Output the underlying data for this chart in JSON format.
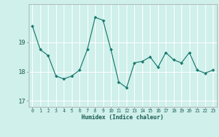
{
  "x": [
    0,
    1,
    2,
    3,
    4,
    5,
    6,
    7,
    8,
    9,
    10,
    11,
    12,
    13,
    14,
    15,
    16,
    17,
    18,
    19,
    20,
    21,
    22,
    23
  ],
  "y": [
    19.55,
    18.75,
    18.55,
    17.85,
    17.75,
    17.85,
    18.05,
    18.75,
    19.85,
    19.75,
    18.75,
    17.65,
    17.45,
    18.3,
    18.35,
    18.5,
    18.15,
    18.65,
    18.4,
    18.3,
    18.65,
    18.05,
    17.95,
    18.05
  ],
  "xlabel": "Humidex (Indice chaleur)",
  "bg_color": "#cff0eb",
  "line_color": "#1a7a6e",
  "marker_color": "#1a7a6e",
  "grid_color": "#ffffff",
  "yticks": [
    17,
    18,
    19
  ],
  "xticks": [
    0,
    1,
    2,
    3,
    4,
    5,
    6,
    7,
    8,
    9,
    10,
    11,
    12,
    13,
    14,
    15,
    16,
    17,
    18,
    19,
    20,
    21,
    22,
    23
  ],
  "ylim": [
    16.8,
    20.3
  ],
  "xlim": [
    -0.5,
    23.5
  ]
}
